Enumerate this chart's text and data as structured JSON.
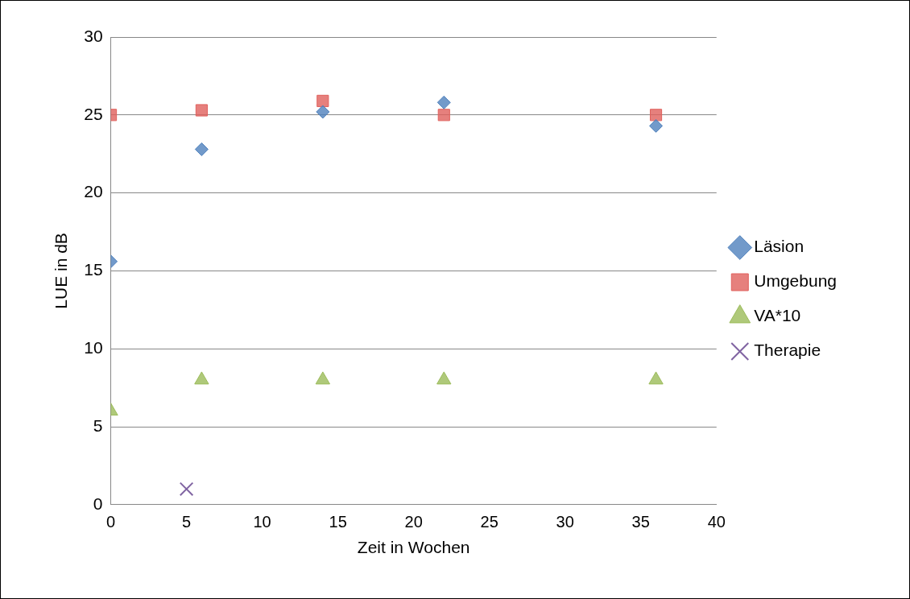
{
  "chart_data": {
    "type": "scatter",
    "xlabel": "Zeit in Wochen",
    "ylabel": "LUE in dB",
    "xlim": [
      0,
      40
    ],
    "xticks": [
      0,
      5,
      10,
      15,
      20,
      25,
      30,
      35,
      40
    ],
    "ylim": [
      0,
      30
    ],
    "yticks": [
      0,
      5,
      10,
      15,
      20,
      25,
      30
    ],
    "grid": "y",
    "legend": "right",
    "series": [
      {
        "name": "Läsion",
        "color": "#4f81bd",
        "marker": "diamond",
        "x": [
          0,
          6,
          14,
          22,
          36
        ],
        "values": [
          15.6,
          22.8,
          25.2,
          25.8,
          24.3
        ]
      },
      {
        "name": "Umgebung",
        "color": "#e0605c",
        "marker": "square",
        "x": [
          0,
          6,
          14,
          22,
          36
        ],
        "values": [
          25.0,
          25.3,
          25.9,
          25.0,
          25.0
        ]
      },
      {
        "name": "VA*10",
        "color": "#9bbb59",
        "marker": "triangle",
        "x": [
          0,
          6,
          14,
          22,
          36
        ],
        "values": [
          6,
          8,
          8,
          8,
          8
        ]
      },
      {
        "name": "Therapie",
        "color": "#8064a2",
        "marker": "cross",
        "x": [
          5
        ],
        "values": [
          1
        ]
      }
    ]
  }
}
